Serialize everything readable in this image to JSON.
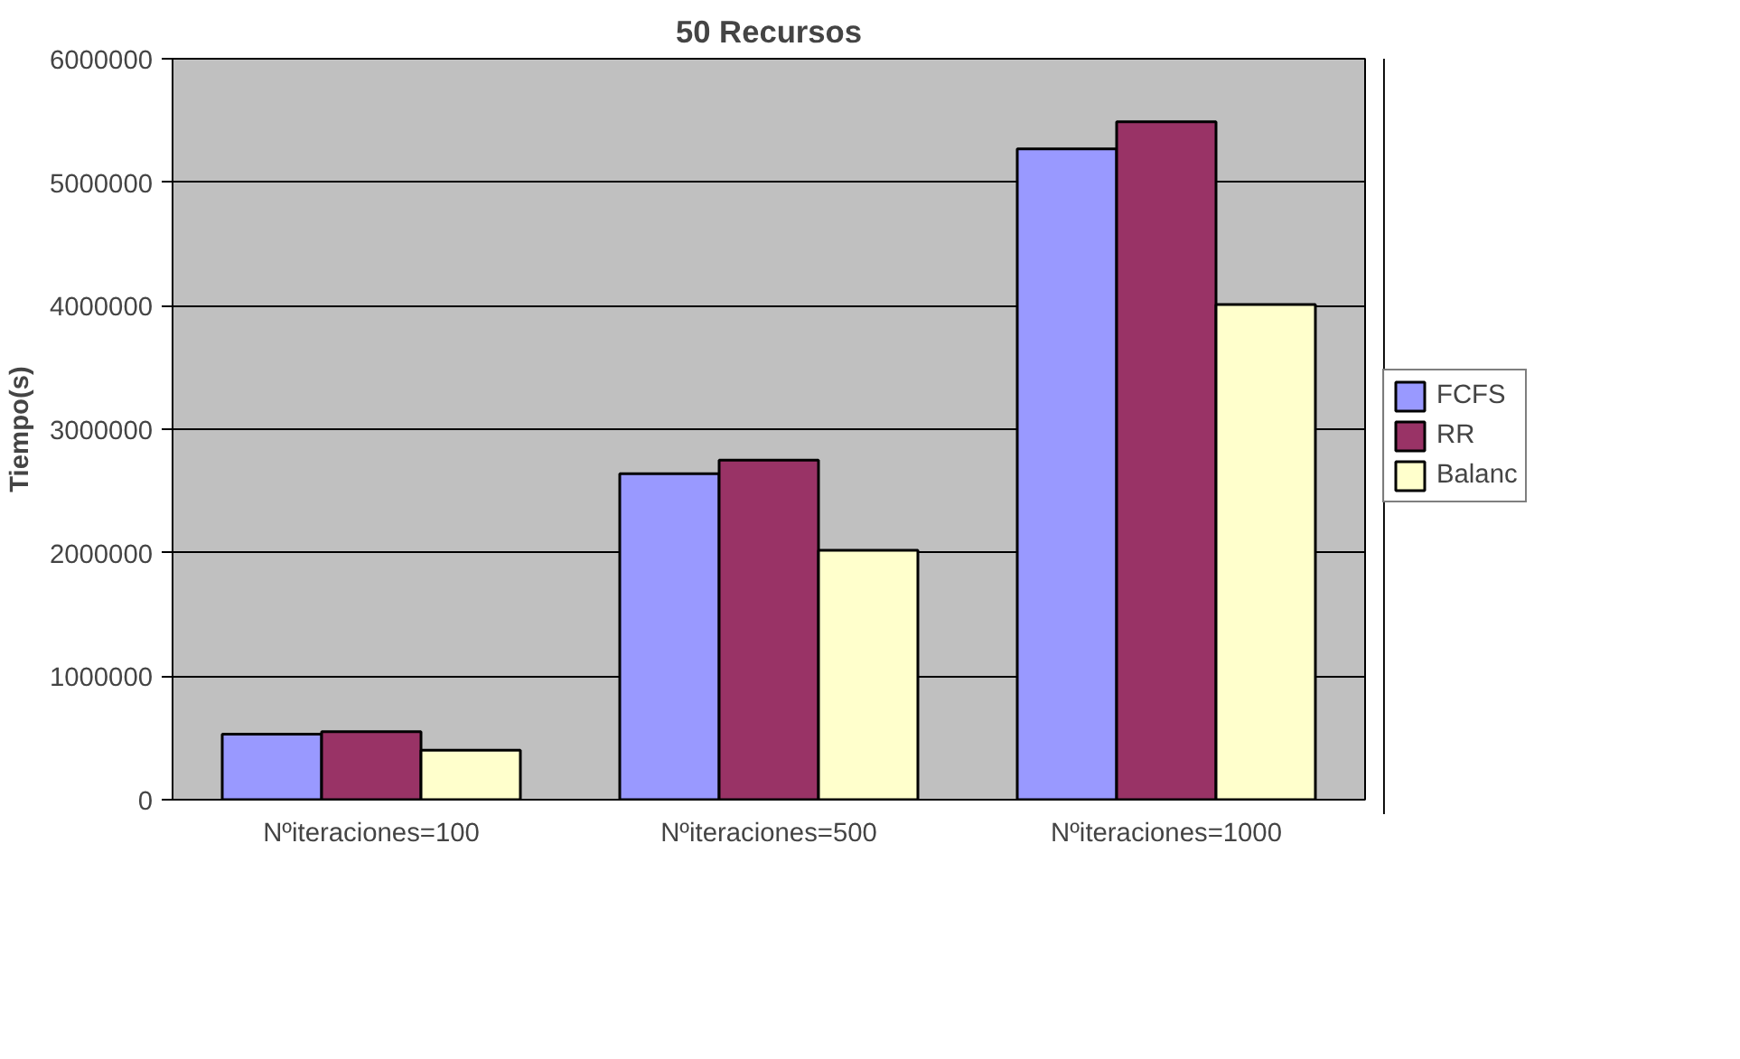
{
  "chart_data": {
    "type": "bar",
    "title": "50 Recursos",
    "ylabel": "Tiempo(s)",
    "categories": [
      "Nºiteraciones=100",
      "Nºiteraciones=500",
      "Nºiteraciones=1000"
    ],
    "series": [
      {
        "name": "FCFS",
        "color": "#9999ff",
        "values": [
          530000,
          2640000,
          5270000
        ]
      },
      {
        "name": "RR",
        "color": "#993366",
        "values": [
          550000,
          2750000,
          5490000
        ]
      },
      {
        "name": "Balanc",
        "color": "#ffffcc",
        "values": [
          400000,
          2020000,
          4010000
        ]
      }
    ],
    "ylim": [
      0,
      6000000
    ],
    "yticks": [
      0,
      1000000,
      2000000,
      3000000,
      4000000,
      5000000,
      6000000
    ],
    "grid": "y",
    "legend": "right"
  }
}
